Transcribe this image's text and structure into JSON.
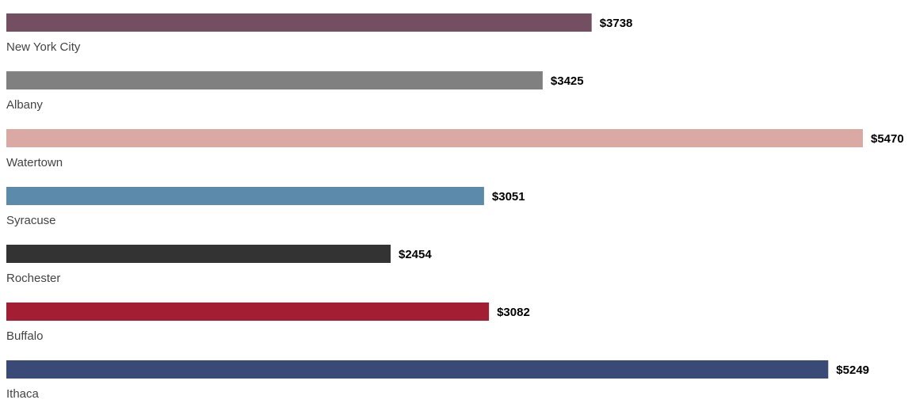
{
  "chart_data": {
    "type": "bar",
    "orientation": "horizontal",
    "categories": [
      "New York City",
      "Albany",
      "Watertown",
      "Syracuse",
      "Rochester",
      "Buffalo",
      "Ithaca"
    ],
    "values": [
      3738,
      3425,
      5470,
      3051,
      2454,
      3082,
      5249
    ],
    "value_labels": [
      "$3738",
      "$3425",
      "$5470",
      "$3051",
      "$2454",
      "$3082",
      "$5249"
    ],
    "colors": [
      "#734f61",
      "#808080",
      "#dba9a4",
      "#5b8aab",
      "#333333",
      "#a31e33",
      "#3a4a77"
    ],
    "xlim": [
      0,
      5470
    ],
    "grid": false,
    "legend": "none",
    "title": "",
    "xlabel": "",
    "ylabel": ""
  }
}
